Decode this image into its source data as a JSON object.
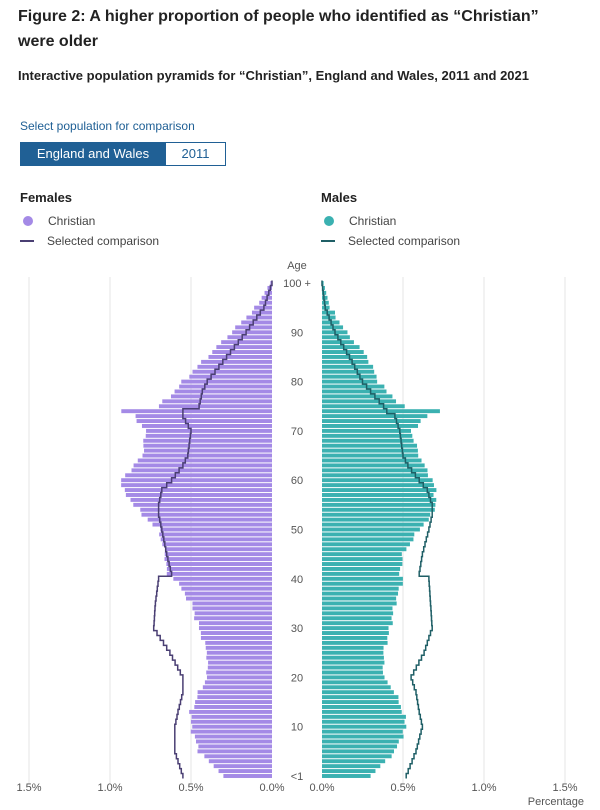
{
  "figure": {
    "title": "Figure 2: A higher proportion of people who identified as “Christian” were older",
    "subtitle": "Interactive population pyramids for “Christian”, England and Wales, 2011 and 2021"
  },
  "controls": {
    "select_label": "Select population for comparison",
    "options": [
      "England and Wales",
      "2011"
    ],
    "selected": "England and Wales"
  },
  "legend": {
    "females": {
      "title": "Females",
      "series_label": "Christian",
      "comparison_label": "Selected comparison"
    },
    "males": {
      "title": "Males",
      "series_label": "Christian",
      "comparison_label": "Selected comparison"
    }
  },
  "colors": {
    "female_bar": "#a48ae6",
    "female_line": "#4a3f73",
    "male_bar": "#3bb1b1",
    "male_line": "#1f5f66",
    "accent": "#206095"
  },
  "chart_data": {
    "type": "bar",
    "orientation": "horizontal-pyramid",
    "age_axis_title": "Age",
    "x_axis_title": "Percentage",
    "x_ticks_left": [
      "1.5%",
      "1.0%",
      "0.5%",
      "0.0%"
    ],
    "x_ticks_right": [
      "0.0%",
      "0.5%",
      "1.0%",
      "1.5%"
    ],
    "age_tick_labels": [
      {
        "age": 100,
        "label": "100 +"
      },
      {
        "age": 90,
        "label": "90"
      },
      {
        "age": 80,
        "label": "80"
      },
      {
        "age": 70,
        "label": "70"
      },
      {
        "age": 60,
        "label": "60"
      },
      {
        "age": 50,
        "label": "50"
      },
      {
        "age": 40,
        "label": "40"
      },
      {
        "age": 30,
        "label": "30"
      },
      {
        "age": 20,
        "label": "20"
      },
      {
        "age": 10,
        "label": "10"
      },
      {
        "age": 0,
        "label": "<1"
      }
    ],
    "xlim": [
      0,
      1.5
    ],
    "age_keypoints": [
      0,
      5,
      10,
      13,
      17,
      20,
      25,
      30,
      35,
      40,
      41,
      45,
      50,
      53,
      55,
      58,
      60,
      63,
      65,
      70,
      73,
      74,
      75,
      78,
      80,
      85,
      90,
      95,
      100
    ],
    "female_christian": [
      0.3,
      0.45,
      0.5,
      0.5,
      0.45,
      0.4,
      0.4,
      0.45,
      0.5,
      0.6,
      0.65,
      0.66,
      0.7,
      0.8,
      0.85,
      0.92,
      0.93,
      0.85,
      0.8,
      0.78,
      0.85,
      0.93,
      0.7,
      0.6,
      0.55,
      0.4,
      0.25,
      0.1,
      0.01
    ],
    "female_comparison": [
      0.55,
      0.6,
      0.6,
      0.58,
      0.55,
      0.55,
      0.63,
      0.73,
      0.72,
      0.7,
      0.62,
      0.65,
      0.68,
      0.7,
      0.7,
      0.68,
      0.62,
      0.55,
      0.52,
      0.5,
      0.55,
      0.55,
      0.45,
      0.43,
      0.4,
      0.28,
      0.16,
      0.05,
      0.0
    ],
    "male_christian": [
      0.3,
      0.45,
      0.52,
      0.5,
      0.45,
      0.38,
      0.38,
      0.42,
      0.45,
      0.5,
      0.48,
      0.5,
      0.6,
      0.68,
      0.7,
      0.7,
      0.68,
      0.63,
      0.6,
      0.55,
      0.65,
      0.73,
      0.5,
      0.4,
      0.35,
      0.28,
      0.15,
      0.05,
      0.01
    ],
    "male_comparison": [
      0.52,
      0.58,
      0.62,
      0.6,
      0.58,
      0.55,
      0.63,
      0.68,
      0.67,
      0.66,
      0.6,
      0.62,
      0.66,
      0.68,
      0.68,
      0.65,
      0.6,
      0.53,
      0.5,
      0.48,
      0.45,
      0.4,
      0.38,
      0.3,
      0.25,
      0.17,
      0.08,
      0.02,
      0.0
    ]
  }
}
